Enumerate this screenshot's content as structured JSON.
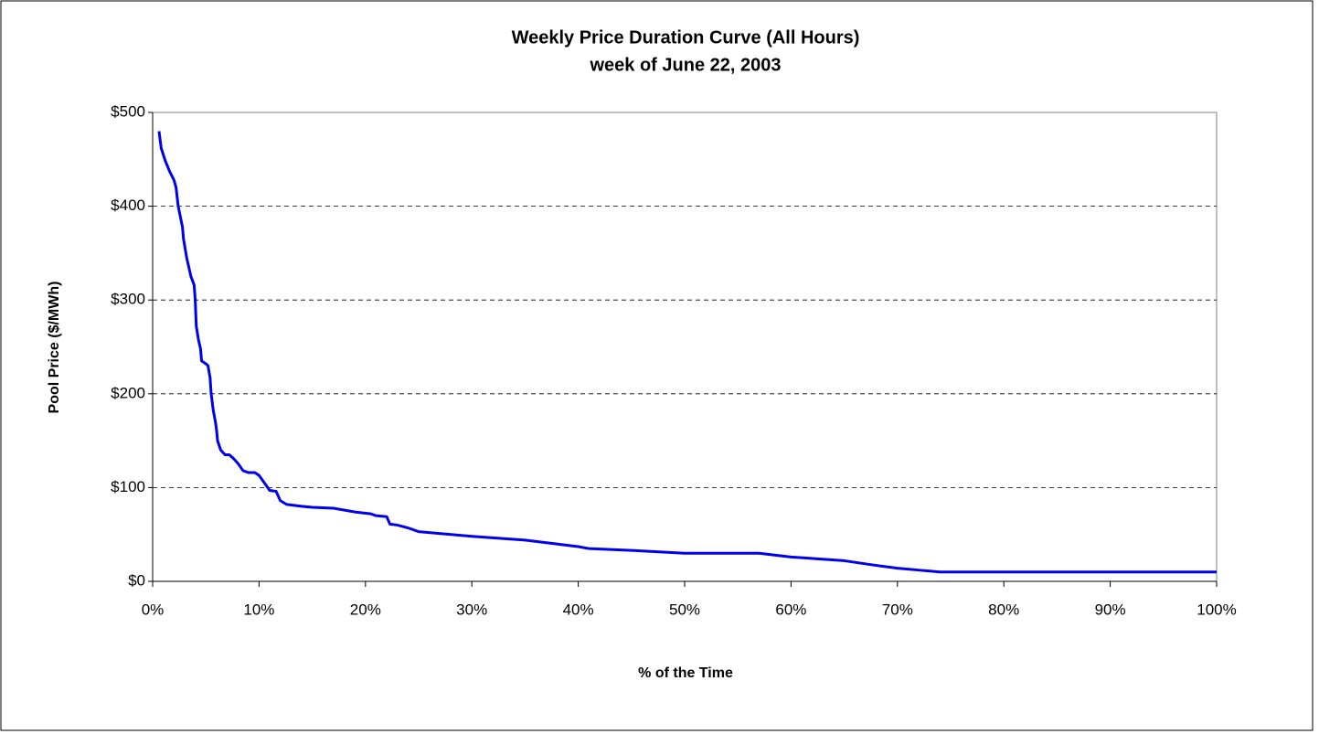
{
  "chart_data": {
    "type": "line",
    "title": "Weekly Price Duration Curve (All Hours)",
    "subtitle": "week of June 22, 2003",
    "x_label": "% of the Time",
    "y_label": "Pool Price ($/MWh)",
    "x": [
      0.6,
      0.8,
      1.2,
      1.6,
      2.0,
      2.2,
      2.4,
      2.8,
      2.9,
      3.2,
      3.4,
      3.6,
      3.9,
      4.0,
      4.1,
      4.3,
      4.5,
      4.6,
      5.0,
      5.2,
      5.4,
      5.5,
      5.7,
      5.9,
      6.0,
      6.1,
      6.4,
      6.8,
      7.2,
      7.6,
      8.0,
      8.5,
      9.0,
      9.6,
      10.0,
      10.5,
      11.0,
      11.6,
      12.0,
      12.6,
      14.0,
      15.0,
      17.0,
      19.0,
      20.5,
      21.0,
      22.0,
      22.3,
      23.0,
      24.0,
      25.0,
      30.0,
      35.0,
      40.0,
      41.0,
      45.0,
      50.0,
      57.0,
      60.0,
      65.0,
      68.0,
      70.0,
      72.0,
      74.0,
      100.0
    ],
    "series": [
      {
        "name": "Pool Price",
        "color": "#0000ee",
        "values": [
          480,
          462,
          448,
          437,
          428,
          420,
          400,
          378,
          365,
          345,
          335,
          325,
          316,
          300,
          272,
          258,
          248,
          235,
          232,
          230,
          217,
          200,
          182,
          170,
          162,
          150,
          140,
          135,
          135,
          131,
          126,
          118,
          116,
          116,
          113,
          105,
          97,
          96,
          86,
          82,
          80,
          79,
          78,
          74,
          72,
          70,
          69,
          61,
          60,
          57,
          53,
          48,
          44,
          37,
          35,
          33,
          30,
          30,
          26,
          22,
          17,
          14,
          12,
          10,
          10
        ]
      }
    ],
    "xlim": [
      0,
      100
    ],
    "ylim": [
      0,
      500
    ],
    "xticks": [
      {
        "value": 0,
        "label": "0%"
      },
      {
        "value": 10,
        "label": "10%"
      },
      {
        "value": 20,
        "label": "20%"
      },
      {
        "value": 30,
        "label": "30%"
      },
      {
        "value": 40,
        "label": "40%"
      },
      {
        "value": 50,
        "label": "50%"
      },
      {
        "value": 60,
        "label": "60%"
      },
      {
        "value": 70,
        "label": "70%"
      },
      {
        "value": 80,
        "label": "80%"
      },
      {
        "value": 90,
        "label": "90%"
      },
      {
        "value": 100,
        "label": "100%"
      }
    ],
    "yticks": [
      {
        "value": 0,
        "label": "$0"
      },
      {
        "value": 100,
        "label": "$100"
      },
      {
        "value": 200,
        "label": "$200"
      },
      {
        "value": 300,
        "label": "$300"
      },
      {
        "value": 400,
        "label": "$400"
      },
      {
        "value": 500,
        "label": "$500"
      }
    ],
    "grid": true
  }
}
